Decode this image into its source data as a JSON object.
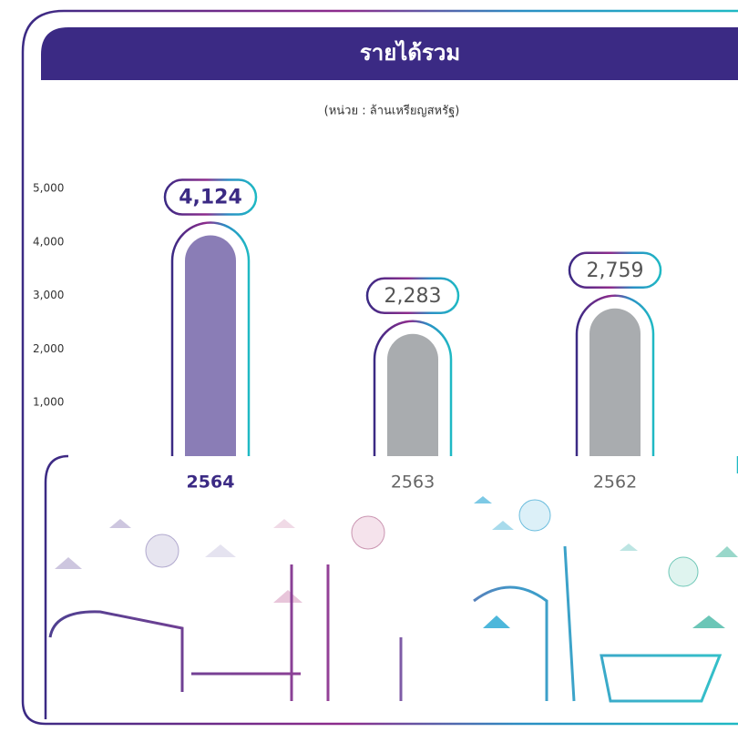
{
  "chart_data": {
    "type": "bar",
    "title": "รายได้รวม",
    "subtitle": "(หน่วย : ล้านเหรียญสหรัฐ)",
    "categories": [
      "2564",
      "2563",
      "2562"
    ],
    "values": [
      4124,
      2283,
      2759
    ],
    "value_labels": [
      "4,124",
      "2,283",
      "2,759"
    ],
    "colors": [
      "#8a7db6",
      "#a9acaf",
      "#a9acaf"
    ],
    "ylim": [
      0,
      5000
    ],
    "yticks": [
      {
        "value": 1000,
        "label": "1,000"
      },
      {
        "value": 2000,
        "label": "2,000"
      },
      {
        "value": 3000,
        "label": "3,000"
      },
      {
        "value": 4000,
        "label": "4,000"
      },
      {
        "value": 5000,
        "label": "5,000"
      }
    ]
  }
}
